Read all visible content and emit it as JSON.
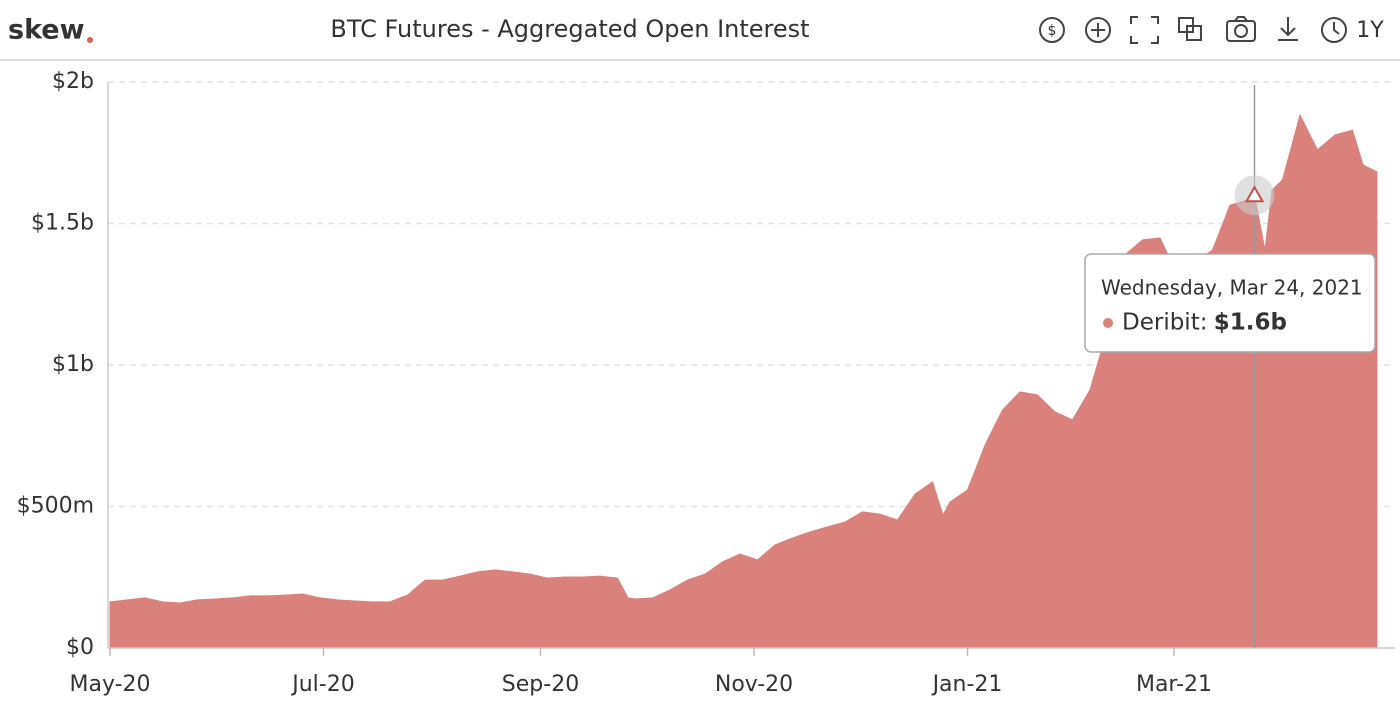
{
  "brand": "skew",
  "chart_data": {
    "type": "area",
    "title": "BTC Futures - Aggregated Open Interest",
    "range_button": "1Y",
    "x": [
      0,
      5,
      10,
      15,
      20,
      25,
      30,
      35,
      40,
      45,
      50,
      55,
      60,
      65,
      70,
      75,
      80,
      85,
      90,
      95,
      100,
      105,
      110,
      115,
      120,
      125,
      130,
      135,
      140,
      145,
      148,
      150,
      155,
      160,
      165,
      170,
      175,
      180,
      185,
      190,
      195,
      200,
      205,
      210,
      215,
      220,
      225,
      230,
      235,
      238,
      240,
      245,
      250,
      255,
      260,
      265,
      270,
      275,
      280,
      285,
      290,
      295,
      300,
      305,
      310,
      315,
      320,
      325,
      327,
      330,
      332,
      335,
      340,
      345,
      350,
      355,
      358,
      362
    ],
    "series": [
      {
        "name": "Deribit",
        "color": "#d9817a",
        "values": [
          163,
          170,
          177,
          163,
          159,
          170,
          173,
          177,
          184,
          184,
          187,
          191,
          177,
          170,
          166,
          163,
          163,
          187,
          240,
          240,
          254,
          269,
          276,
          269,
          261,
          247,
          251,
          251,
          254,
          247,
          177,
          173,
          177,
          205,
          240,
          261,
          304,
          332,
          311,
          364,
          389,
          410,
          428,
          445,
          481,
          473,
          452,
          544,
          587,
          470,
          516,
          558,
          717,
          841,
          905,
          894,
          834,
          806,
          912,
          1124,
          1389,
          1442,
          1449,
          1318,
          1364,
          1406,
          1565,
          1583,
          1600,
          1406,
          1618,
          1654,
          1883,
          1760,
          1813,
          1830,
          1707,
          1682
        ]
      }
    ],
    "xlim": [
      0,
      362
    ],
    "xticks": [
      {
        "value": 0,
        "label": "May-20"
      },
      {
        "value": 61,
        "label": "Jul-20"
      },
      {
        "value": 123,
        "label": "Sep-20"
      },
      {
        "value": 184,
        "label": "Nov-20"
      },
      {
        "value": 245,
        "label": "Jan-21"
      },
      {
        "value": 304,
        "label": "Mar-21"
      }
    ],
    "ylim": [
      0,
      2000
    ],
    "yticks": [
      {
        "value": 0,
        "label": "$0"
      },
      {
        "value": 500,
        "label": "$500m"
      },
      {
        "value": 1000,
        "label": "$1b"
      },
      {
        "value": 1500,
        "label": "$1.5b"
      },
      {
        "value": 2000,
        "label": "$2b"
      }
    ],
    "grid": true,
    "tooltip": {
      "x": 327,
      "date": "Wednesday, Mar 24, 2021",
      "value": 1600,
      "value_label": "$1.6b"
    }
  }
}
